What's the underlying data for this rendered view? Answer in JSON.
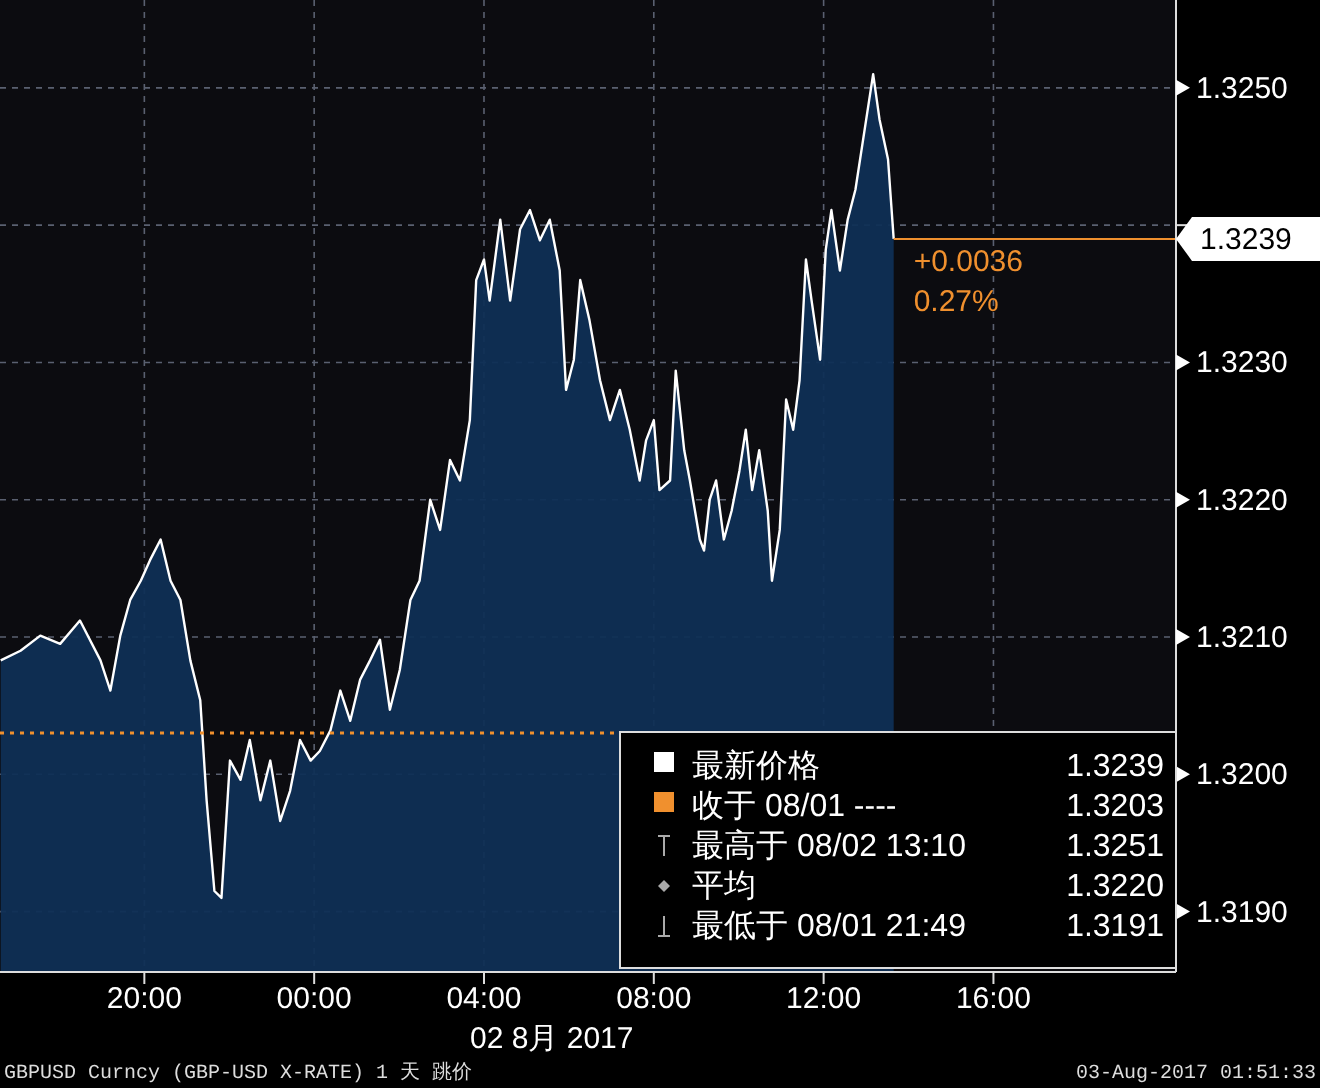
{
  "chart_data": {
    "type": "area",
    "xlim": [
      "2017-08-01T16:36",
      "2017-08-02T20:18"
    ],
    "ylim": [
      1.31856,
      1.32564
    ],
    "xticks": [
      {
        "value": "2017-08-01T20:00",
        "label": "20:00"
      },
      {
        "value": "2017-08-02T00:00",
        "label": "00:00"
      },
      {
        "value": "2017-08-02T04:00",
        "label": "04:00"
      },
      {
        "value": "2017-08-02T08:00",
        "label": "08:00"
      },
      {
        "value": "2017-08-02T12:00",
        "label": "12:00"
      },
      {
        "value": "2017-08-02T16:00",
        "label": "16:00"
      }
    ],
    "yticks": [
      {
        "value": 1.319,
        "label": "1.3190"
      },
      {
        "value": 1.32,
        "label": "1.3200"
      },
      {
        "value": 1.321,
        "label": "1.3210"
      },
      {
        "value": 1.322,
        "label": "1.3220"
      },
      {
        "value": 1.323,
        "label": "1.3230"
      },
      {
        "value": 1.324,
        "label": null
      },
      {
        "value": 1.325,
        "label": "1.3250"
      }
    ],
    "grid": true,
    "legend": "bottom right",
    "series": [
      {
        "name": "最新价格",
        "color": "#ffffff",
        "x": [
          "2017-08-01T16:37",
          "2017-08-01T17:05",
          "2017-08-01T17:33",
          "2017-08-01T18:01",
          "2017-08-01T18:29",
          "2017-08-01T18:58",
          "2017-08-01T19:12",
          "2017-08-01T19:26",
          "2017-08-01T19:40",
          "2017-08-01T19:55",
          "2017-08-01T20:08",
          "2017-08-01T20:23",
          "2017-08-01T20:37",
          "2017-08-01T20:51",
          "2017-08-01T21:05",
          "2017-08-01T21:19",
          "2017-08-01T21:28",
          "2017-08-01T21:39",
          "2017-08-01T21:49",
          "2017-08-01T22:01",
          "2017-08-01T22:16",
          "2017-08-01T22:29",
          "2017-08-01T22:44",
          "2017-08-01T22:58",
          "2017-08-01T23:12",
          "2017-08-01T23:26",
          "2017-08-01T23:40",
          "2017-08-01T23:55",
          "2017-08-02T00:08",
          "2017-08-02T00:23",
          "2017-08-02T00:37",
          "2017-08-02T00:51",
          "2017-08-02T01:05",
          "2017-08-02T01:19",
          "2017-08-02T01:33",
          "2017-08-02T01:47",
          "2017-08-02T02:01",
          "2017-08-02T02:16",
          "2017-08-02T02:29",
          "2017-08-02T02:44",
          "2017-08-02T02:58",
          "2017-08-02T03:12",
          "2017-08-02T03:26",
          "2017-08-02T03:40",
          "2017-08-02T03:49",
          "2017-08-02T04:00",
          "2017-08-02T04:08",
          "2017-08-02T04:23",
          "2017-08-02T04:37",
          "2017-08-02T04:51",
          "2017-08-02T05:05",
          "2017-08-02T05:19",
          "2017-08-02T05:33",
          "2017-08-02T05:47",
          "2017-08-02T05:56",
          "2017-08-02T06:07",
          "2017-08-02T06:16",
          "2017-08-02T06:29",
          "2017-08-02T06:44",
          "2017-08-02T06:58",
          "2017-08-02T07:12",
          "2017-08-02T07:26",
          "2017-08-02T07:40",
          "2017-08-02T07:49",
          "2017-08-02T08:00",
          "2017-08-02T08:08",
          "2017-08-02T08:23",
          "2017-08-02T08:31",
          "2017-08-02T08:43",
          "2017-08-02T08:51",
          "2017-08-02T09:05",
          "2017-08-02T09:11",
          "2017-08-02T09:19",
          "2017-08-02T09:28",
          "2017-08-02T09:39",
          "2017-08-02T09:50",
          "2017-08-02T10:01",
          "2017-08-02T10:10",
          "2017-08-02T10:19",
          "2017-08-02T10:29",
          "2017-08-02T10:41",
          "2017-08-02T10:47",
          "2017-08-02T10:58",
          "2017-08-02T11:07",
          "2017-08-02T11:17",
          "2017-08-02T11:26",
          "2017-08-02T11:35",
          "2017-08-02T11:43",
          "2017-08-02T11:55",
          "2017-08-02T12:03",
          "2017-08-02T12:11",
          "2017-08-02T12:23",
          "2017-08-02T12:34",
          "2017-08-02T12:45",
          "2017-08-02T13:10",
          "2017-08-02T13:19",
          "2017-08-02T13:31",
          "2017-08-02T13:39"
        ],
        "values": [
          1.32083,
          1.3209,
          1.32101,
          1.32095,
          1.32112,
          1.32083,
          1.32061,
          1.32101,
          1.32127,
          1.32141,
          1.32156,
          1.32171,
          1.32141,
          1.32127,
          1.32083,
          1.32054,
          1.31981,
          1.31915,
          1.3191,
          1.3201,
          1.31996,
          1.32025,
          1.31981,
          1.3201,
          1.31966,
          1.31988,
          1.32025,
          1.3201,
          1.32017,
          1.32032,
          1.32061,
          1.32039,
          1.32069,
          1.32083,
          1.32098,
          1.32047,
          1.32076,
          1.32127,
          1.32141,
          1.322,
          1.32178,
          1.32229,
          1.32214,
          1.32258,
          1.3236,
          1.32375,
          1.32345,
          1.32404,
          1.32345,
          1.32397,
          1.32411,
          1.32389,
          1.32404,
          1.32367,
          1.3228,
          1.32302,
          1.3236,
          1.32331,
          1.32287,
          1.32258,
          1.3228,
          1.32251,
          1.32214,
          1.32243,
          1.32258,
          1.32207,
          1.32214,
          1.32294,
          1.32236,
          1.32214,
          1.32171,
          1.32163,
          1.322,
          1.32214,
          1.32171,
          1.32192,
          1.32221,
          1.32251,
          1.32207,
          1.32236,
          1.32192,
          1.32141,
          1.32178,
          1.32273,
          1.32251,
          1.32287,
          1.32375,
          1.32345,
          1.32302,
          1.32382,
          1.32411,
          1.32367,
          1.32404,
          1.32426,
          1.3251,
          1.32477,
          1.32448,
          1.3239
        ]
      }
    ],
    "ref_lines": [
      {
        "axis": "y",
        "value": 1.3239,
        "label": "1.3239",
        "color": "#f0902e",
        "line_style": "solid"
      },
      {
        "axis": "y",
        "value": 1.3203,
        "label": "收于 08/01 ---- 1.3203",
        "color": "#f0902e",
        "line_style": "dotted"
      }
    ],
    "annotations": [
      "+0.0036",
      "0.27%",
      "最高于 08/02 13:10 1.3251",
      "平均 1.3220",
      "最低于 08/01 21:49 1.3191",
      "02 8月 2017",
      "GBPUSD Curncy (GBP-USD X-RATE) 1 天 跳价",
      "03-Aug-2017 01:51:33"
    ]
  }
}
